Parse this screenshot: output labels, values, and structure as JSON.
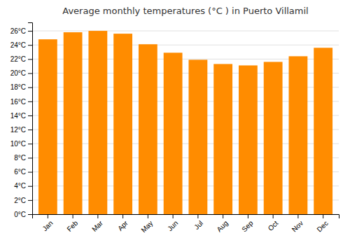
{
  "chart_data": {
    "type": "bar",
    "title": "Average monthly temperatures (°C ) in Puerto Villamil",
    "categories": [
      "Jan",
      "Feb",
      "Mar",
      "Apr",
      "May",
      "Jun",
      "Jul",
      "Aug",
      "Sep",
      "Oct",
      "Nov",
      "Dec"
    ],
    "values": [
      24.8,
      25.8,
      26.0,
      25.6,
      24.1,
      22.9,
      21.9,
      21.3,
      21.1,
      21.6,
      22.4,
      23.6
    ],
    "color": "#FF8C00",
    "ylim": [
      0,
      27.2
    ],
    "yticks": [
      {
        "value": 0,
        "label": "0°C"
      },
      {
        "value": 2,
        "label": "2°C"
      },
      {
        "value": 4,
        "label": "4°C"
      },
      {
        "value": 6,
        "label": "6°C"
      },
      {
        "value": 8,
        "label": "8°C"
      },
      {
        "value": 10,
        "label": "10°C"
      },
      {
        "value": 12,
        "label": "12°C"
      },
      {
        "value": 14,
        "label": "14°C"
      },
      {
        "value": 16,
        "label": "16°C"
      },
      {
        "value": 18,
        "label": "18°C"
      },
      {
        "value": 20,
        "label": "20°C"
      },
      {
        "value": 22,
        "label": "22°C"
      },
      {
        "value": 24,
        "label": "24°C"
      },
      {
        "value": 26,
        "label": "26°C"
      }
    ],
    "grid": true
  }
}
